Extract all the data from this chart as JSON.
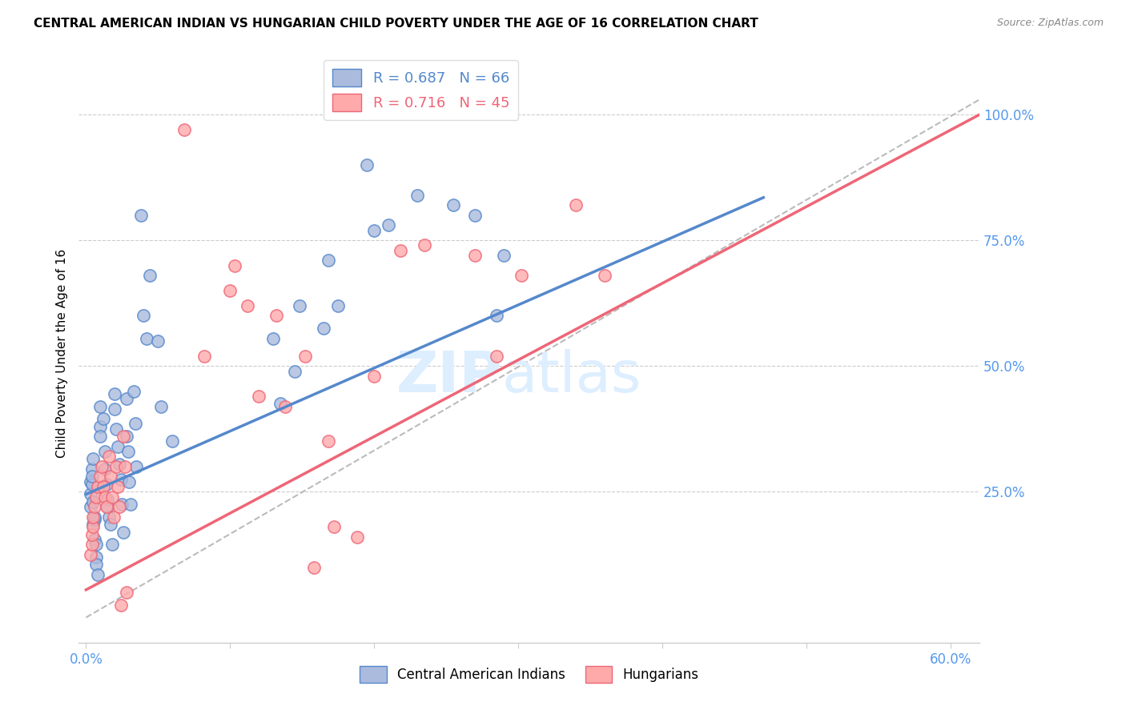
{
  "title": "CENTRAL AMERICAN INDIAN VS HUNGARIAN CHILD POVERTY UNDER THE AGE OF 16 CORRELATION CHART",
  "source": "Source: ZipAtlas.com",
  "ylabel": "Child Poverty Under the Age of 16",
  "ytick_labels": [
    "25.0%",
    "50.0%",
    "75.0%",
    "100.0%"
  ],
  "ytick_vals": [
    0.25,
    0.5,
    0.75,
    1.0
  ],
  "xtick_vals": [
    0.0,
    0.1,
    0.2,
    0.3,
    0.4,
    0.5,
    0.6
  ],
  "xlim": [
    -0.005,
    0.62
  ],
  "ylim": [
    -0.05,
    1.1
  ],
  "color_blue": "#5588CC",
  "color_pink": "#EE6677",
  "color_blue_light": "#AABBDD",
  "color_pink_light": "#FFAAAA",
  "color_dashed_line": "#BBBBBB",
  "tick_label_color": "#5599EE",
  "watermark_color": "#DDEEFF",
  "blue_scatter": [
    [
      0.003,
      0.245
    ],
    [
      0.003,
      0.27
    ],
    [
      0.003,
      0.22
    ],
    [
      0.004,
      0.265
    ],
    [
      0.004,
      0.295
    ],
    [
      0.004,
      0.28
    ],
    [
      0.005,
      0.315
    ],
    [
      0.005,
      0.23
    ],
    [
      0.005,
      0.185
    ],
    [
      0.006,
      0.195
    ],
    [
      0.006,
      0.155
    ],
    [
      0.006,
      0.2
    ],
    [
      0.007,
      0.145
    ],
    [
      0.007,
      0.12
    ],
    [
      0.007,
      0.105
    ],
    [
      0.008,
      0.085
    ],
    [
      0.01,
      0.38
    ],
    [
      0.01,
      0.42
    ],
    [
      0.01,
      0.36
    ],
    [
      0.012,
      0.395
    ],
    [
      0.013,
      0.33
    ],
    [
      0.013,
      0.295
    ],
    [
      0.014,
      0.265
    ],
    [
      0.015,
      0.235
    ],
    [
      0.015,
      0.22
    ],
    [
      0.016,
      0.2
    ],
    [
      0.017,
      0.185
    ],
    [
      0.018,
      0.145
    ],
    [
      0.02,
      0.445
    ],
    [
      0.02,
      0.415
    ],
    [
      0.021,
      0.375
    ],
    [
      0.022,
      0.34
    ],
    [
      0.023,
      0.305
    ],
    [
      0.024,
      0.275
    ],
    [
      0.025,
      0.225
    ],
    [
      0.026,
      0.17
    ],
    [
      0.028,
      0.435
    ],
    [
      0.028,
      0.36
    ],
    [
      0.029,
      0.33
    ],
    [
      0.03,
      0.27
    ],
    [
      0.031,
      0.225
    ],
    [
      0.033,
      0.45
    ],
    [
      0.034,
      0.385
    ],
    [
      0.035,
      0.3
    ],
    [
      0.038,
      0.8
    ],
    [
      0.04,
      0.6
    ],
    [
      0.042,
      0.555
    ],
    [
      0.044,
      0.68
    ],
    [
      0.05,
      0.55
    ],
    [
      0.052,
      0.42
    ],
    [
      0.06,
      0.35
    ],
    [
      0.13,
      0.555
    ],
    [
      0.135,
      0.425
    ],
    [
      0.145,
      0.49
    ],
    [
      0.148,
      0.62
    ],
    [
      0.165,
      0.575
    ],
    [
      0.168,
      0.71
    ],
    [
      0.175,
      0.62
    ],
    [
      0.195,
      0.9
    ],
    [
      0.2,
      0.77
    ],
    [
      0.21,
      0.78
    ],
    [
      0.23,
      0.84
    ],
    [
      0.255,
      0.82
    ],
    [
      0.27,
      0.8
    ],
    [
      0.285,
      0.6
    ],
    [
      0.29,
      0.72
    ]
  ],
  "pink_scatter": [
    [
      0.003,
      0.125
    ],
    [
      0.004,
      0.145
    ],
    [
      0.004,
      0.165
    ],
    [
      0.005,
      0.18
    ],
    [
      0.005,
      0.2
    ],
    [
      0.006,
      0.22
    ],
    [
      0.007,
      0.24
    ],
    [
      0.008,
      0.26
    ],
    [
      0.01,
      0.28
    ],
    [
      0.011,
      0.3
    ],
    [
      0.012,
      0.26
    ],
    [
      0.013,
      0.24
    ],
    [
      0.014,
      0.22
    ],
    [
      0.016,
      0.32
    ],
    [
      0.017,
      0.28
    ],
    [
      0.018,
      0.24
    ],
    [
      0.019,
      0.2
    ],
    [
      0.021,
      0.3
    ],
    [
      0.022,
      0.26
    ],
    [
      0.023,
      0.22
    ],
    [
      0.024,
      0.025
    ],
    [
      0.026,
      0.36
    ],
    [
      0.027,
      0.3
    ],
    [
      0.028,
      0.05
    ],
    [
      0.068,
      0.97
    ],
    [
      0.082,
      0.52
    ],
    [
      0.1,
      0.65
    ],
    [
      0.103,
      0.7
    ],
    [
      0.112,
      0.62
    ],
    [
      0.12,
      0.44
    ],
    [
      0.132,
      0.6
    ],
    [
      0.138,
      0.42
    ],
    [
      0.152,
      0.52
    ],
    [
      0.158,
      0.1
    ],
    [
      0.168,
      0.35
    ],
    [
      0.172,
      0.18
    ],
    [
      0.188,
      0.16
    ],
    [
      0.2,
      0.48
    ],
    [
      0.218,
      0.73
    ],
    [
      0.235,
      0.74
    ],
    [
      0.27,
      0.72
    ],
    [
      0.285,
      0.52
    ],
    [
      0.302,
      0.68
    ],
    [
      0.34,
      0.82
    ],
    [
      0.36,
      0.68
    ]
  ],
  "blue_line_x": [
    0.0,
    0.47
  ],
  "blue_line_y": [
    0.245,
    0.835
  ],
  "pink_line_x": [
    0.0,
    0.62
  ],
  "pink_line_y": [
    0.055,
    1.0
  ],
  "dashed_line_x": [
    0.0,
    0.62
  ],
  "dashed_line_y": [
    0.0,
    1.03
  ]
}
